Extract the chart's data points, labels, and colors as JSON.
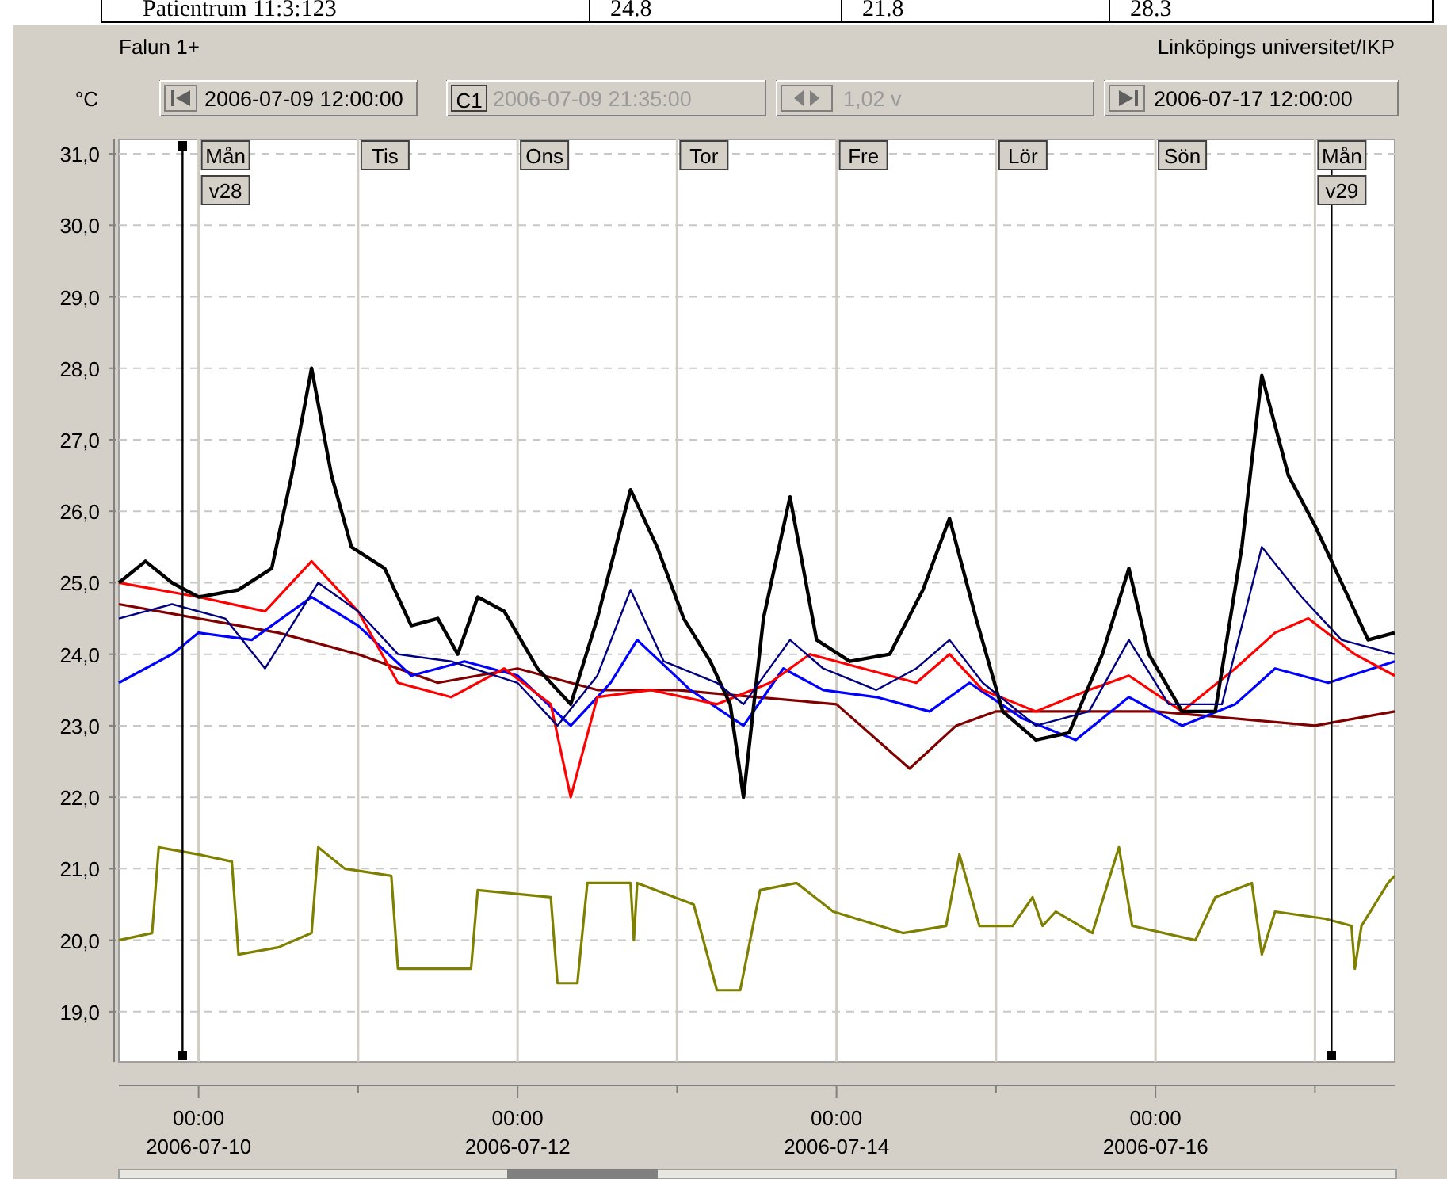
{
  "chart_data": {
    "type": "line",
    "title": "Falun 1+",
    "subtitle": "Linköpings universitet/IKP",
    "ylabel": "°C",
    "annotations": [
      "Patientrum 11:3:123",
      "24.8",
      "21.8",
      "28.3",
      "2006-07-09 12:00:00",
      "C1",
      "2006-07-09 21:35:00",
      "1,02 v",
      "2006-07-17 12:00:00",
      "Mån",
      "Tis",
      "Ons",
      "Tor",
      "Fre",
      "Lör",
      "Sön",
      "Mån",
      "v28",
      "v29"
    ],
    "xlim": [
      "2006-07-09T12:00",
      "2006-07-17T12:00"
    ],
    "xticks": [
      {
        "value": "2006-07-10",
        "label": "00:00\n2006-07-10"
      },
      {
        "value": "2006-07-11",
        "label": null
      },
      {
        "value": "2006-07-12",
        "label": "00:00\n2006-07-12"
      },
      {
        "value": "2006-07-13",
        "label": null
      },
      {
        "value": "2006-07-14",
        "label": "00:00\n2006-07-14"
      },
      {
        "value": "2006-07-15",
        "label": null
      },
      {
        "value": "2006-07-16",
        "label": "00:00\n2006-07-16"
      },
      {
        "value": "2006-07-17",
        "label": null
      }
    ],
    "ylim": [
      18.3,
      31.2
    ],
    "yticks": [
      {
        "value": 19,
        "label": "19,0"
      },
      {
        "value": 20,
        "label": "20,0"
      },
      {
        "value": 21,
        "label": "21,0"
      },
      {
        "value": 22,
        "label": "22,0"
      },
      {
        "value": 23,
        "label": "23,0"
      },
      {
        "value": 24,
        "label": "24,0"
      },
      {
        "value": 25,
        "label": "25,0"
      },
      {
        "value": 26,
        "label": "26,0"
      },
      {
        "value": 27,
        "label": "27,0"
      },
      {
        "value": 28,
        "label": "28,0"
      },
      {
        "value": 29,
        "label": "29,0"
      },
      {
        "value": 30,
        "label": "30,0"
      },
      {
        "value": 31,
        "label": "31,0"
      }
    ],
    "grid": true,
    "legend": false,
    "marker": "none",
    "line_style": "solid",
    "ref_lines": [
      {
        "axis": "x",
        "value": "2006-07-09T21:35",
        "color": "#000000"
      },
      {
        "axis": "x",
        "value": "2006-07-17T02:30",
        "color": "#000000"
      }
    ],
    "series": [
      {
        "color": "#808000",
        "x": [
          "2006-07-09T12:00",
          "2006-07-09T17:00",
          "2006-07-09T18:00",
          "2006-07-10T00:00",
          "2006-07-10T05:00",
          "2006-07-10T06:00",
          "2006-07-10T12:00",
          "2006-07-10T17:00",
          "2006-07-10T18:00",
          "2006-07-10T22:00",
          "2006-07-11T05:00",
          "2006-07-11T06:00",
          "2006-07-11T12:00",
          "2006-07-11T17:00",
          "2006-07-11T18:00",
          "2006-07-12T05:00",
          "2006-07-12T06:00",
          "2006-07-12T09:00",
          "2006-07-12T10:30",
          "2006-07-12T17:00",
          "2006-07-12T17:30",
          "2006-07-12T18:00",
          "2006-07-13T02:30",
          "2006-07-13T06:00",
          "2006-07-13T09:30",
          "2006-07-13T12:30",
          "2006-07-13T18:00",
          "2006-07-13T23:30",
          "2006-07-14T10:00",
          "2006-07-14T16:30",
          "2006-07-14T18:30",
          "2006-07-14T21:30",
          "2006-07-15T02:30",
          "2006-07-15T05:30",
          "2006-07-15T07:00",
          "2006-07-15T09:00",
          "2006-07-15T14:30",
          "2006-07-15T18:30",
          "2006-07-15T20:30",
          "2006-07-16T06:00",
          "2006-07-16T09:00",
          "2006-07-16T14:30",
          "2006-07-16T16:00",
          "2006-07-16T18:00",
          "2006-07-17T01:30",
          "2006-07-17T05:30",
          "2006-07-17T06:00",
          "2006-07-17T07:00",
          "2006-07-17T11:00",
          "2006-07-17T12:00"
        ],
        "values": [
          20.0,
          20.1,
          21.3,
          21.2,
          21.1,
          19.8,
          19.9,
          20.1,
          21.3,
          21.0,
          20.9,
          19.6,
          19.6,
          19.6,
          20.7,
          20.6,
          19.4,
          19.4,
          20.8,
          20.8,
          20.0,
          20.8,
          20.5,
          19.3,
          19.3,
          20.7,
          20.8,
          20.4,
          20.1,
          20.2,
          21.2,
          20.2,
          20.2,
          20.6,
          20.2,
          20.4,
          20.1,
          21.3,
          20.2,
          20.0,
          20.6,
          20.8,
          19.8,
          20.4,
          20.3,
          20.2,
          19.6,
          20.2,
          20.8,
          20.9
        ]
      },
      {
        "color": "#800000",
        "x": [
          "2006-07-09T12:00",
          "2006-07-10T00:00",
          "2006-07-10T12:00",
          "2006-07-11T00:00",
          "2006-07-11T12:00",
          "2006-07-12T00:00",
          "2006-07-12T12:00",
          "2006-07-13T00:00",
          "2006-07-13T12:00",
          "2006-07-14T00:00",
          "2006-07-14T11:00",
          "2006-07-14T18:00",
          "2006-07-15T00:00",
          "2006-07-15T12:00",
          "2006-07-16T00:00",
          "2006-07-16T12:00",
          "2006-07-17T00:00",
          "2006-07-17T12:00"
        ],
        "values": [
          24.7,
          24.5,
          24.3,
          24.0,
          23.6,
          23.8,
          23.5,
          23.5,
          23.4,
          23.3,
          22.4,
          23.0,
          23.2,
          23.2,
          23.2,
          23.1,
          23.0,
          23.2
        ]
      },
      {
        "color": "#0000ff",
        "x": [
          "2006-07-09T12:00",
          "2006-07-09T20:00",
          "2006-07-10T00:00",
          "2006-07-10T08:00",
          "2006-07-10T17:00",
          "2006-07-11T00:00",
          "2006-07-11T08:00",
          "2006-07-11T16:00",
          "2006-07-12T00:00",
          "2006-07-12T08:00",
          "2006-07-12T14:00",
          "2006-07-12T18:00",
          "2006-07-13T02:00",
          "2006-07-13T10:00",
          "2006-07-13T16:00",
          "2006-07-13T22:00",
          "2006-07-14T06:00",
          "2006-07-14T14:00",
          "2006-07-14T20:00",
          "2006-07-15T04:00",
          "2006-07-15T12:00",
          "2006-07-15T20:00",
          "2006-07-16T04:00",
          "2006-07-16T12:00",
          "2006-07-16T18:00",
          "2006-07-17T02:00",
          "2006-07-17T12:00"
        ],
        "values": [
          23.6,
          24.0,
          24.3,
          24.2,
          24.8,
          24.4,
          23.7,
          23.9,
          23.7,
          23.0,
          23.6,
          24.2,
          23.5,
          23.0,
          23.8,
          23.5,
          23.4,
          23.2,
          23.6,
          23.1,
          22.8,
          23.4,
          23.0,
          23.3,
          23.8,
          23.6,
          23.9
        ]
      },
      {
        "color": "#ff0000",
        "x": [
          "2006-07-09T12:00",
          "2006-07-10T00:00",
          "2006-07-10T10:00",
          "2006-07-10T17:00",
          "2006-07-11T00:00",
          "2006-07-11T06:00",
          "2006-07-11T14:00",
          "2006-07-11T22:00",
          "2006-07-12T05:00",
          "2006-07-12T08:00",
          "2006-07-12T12:00",
          "2006-07-12T20:00",
          "2006-07-13T06:00",
          "2006-07-13T14:00",
          "2006-07-13T20:00",
          "2006-07-14T04:00",
          "2006-07-14T12:00",
          "2006-07-14T17:00",
          "2006-07-14T22:00",
          "2006-07-15T06:00",
          "2006-07-15T14:00",
          "2006-07-15T20:00",
          "2006-07-16T04:00",
          "2006-07-16T12:00",
          "2006-07-16T18:00",
          "2006-07-16T23:00",
          "2006-07-17T06:00",
          "2006-07-17T12:00"
        ],
        "values": [
          25.0,
          24.8,
          24.6,
          25.3,
          24.6,
          23.6,
          23.4,
          23.8,
          23.3,
          22.0,
          23.4,
          23.5,
          23.3,
          23.6,
          24.0,
          23.8,
          23.6,
          24.0,
          23.5,
          23.2,
          23.5,
          23.7,
          23.2,
          23.8,
          24.3,
          24.5,
          24.0,
          23.7
        ]
      },
      {
        "color": "#000000",
        "x": [
          "2006-07-09T12:00",
          "2006-07-09T16:00",
          "2006-07-09T20:00",
          "2006-07-10T00:00",
          "2006-07-10T06:00",
          "2006-07-10T11:00",
          "2006-07-10T14:00",
          "2006-07-10T17:00",
          "2006-07-10T20:00",
          "2006-07-10T23:00",
          "2006-07-11T04:00",
          "2006-07-11T08:00",
          "2006-07-11T12:00",
          "2006-07-11T15:00",
          "2006-07-11T18:00",
          "2006-07-11T22:00",
          "2006-07-12T03:00",
          "2006-07-12T08:00",
          "2006-07-12T12:00",
          "2006-07-12T17:00",
          "2006-07-12T21:00",
          "2006-07-13T01:00",
          "2006-07-13T05:00",
          "2006-07-13T08:00",
          "2006-07-13T10:00",
          "2006-07-13T13:00",
          "2006-07-13T17:00",
          "2006-07-13T21:00",
          "2006-07-14T02:00",
          "2006-07-14T08:00",
          "2006-07-14T13:00",
          "2006-07-14T17:00",
          "2006-07-14T21:00",
          "2006-07-15T01:00",
          "2006-07-15T06:00",
          "2006-07-15T11:00",
          "2006-07-15T16:00",
          "2006-07-15T20:00",
          "2006-07-15T23:00",
          "2006-07-16T04:00",
          "2006-07-16T09:00",
          "2006-07-16T13:00",
          "2006-07-16T16:00",
          "2006-07-16T20:00",
          "2006-07-17T00:00",
          "2006-07-17T04:00",
          "2006-07-17T08:00",
          "2006-07-17T12:00"
        ],
        "values": [
          25.0,
          25.3,
          25.0,
          24.8,
          24.9,
          25.2,
          26.5,
          28.0,
          26.5,
          25.5,
          25.2,
          24.4,
          24.5,
          24.0,
          24.8,
          24.6,
          23.8,
          23.3,
          24.5,
          26.3,
          25.5,
          24.5,
          23.9,
          23.3,
          22.0,
          24.5,
          26.2,
          24.2,
          23.9,
          24.0,
          24.9,
          25.9,
          24.5,
          23.2,
          22.8,
          22.9,
          24.0,
          25.2,
          24.0,
          23.2,
          23.2,
          25.5,
          27.9,
          26.5,
          25.8,
          25.0,
          24.2,
          24.3
        ]
      },
      {
        "color": "#000080",
        "x": [
          "2006-07-09T12:00",
          "2006-07-09T20:00",
          "2006-07-10T04:00",
          "2006-07-10T10:00",
          "2006-07-10T14:00",
          "2006-07-10T18:00",
          "2006-07-11T00:00",
          "2006-07-11T06:00",
          "2006-07-11T14:00",
          "2006-07-12T00:00",
          "2006-07-12T06:00",
          "2006-07-12T12:00",
          "2006-07-12T17:00",
          "2006-07-12T22:00",
          "2006-07-13T06:00",
          "2006-07-13T10:00",
          "2006-07-13T17:00",
          "2006-07-13T22:00",
          "2006-07-14T06:00",
          "2006-07-14T12:00",
          "2006-07-14T17:00",
          "2006-07-14T22:00",
          "2006-07-15T06:00",
          "2006-07-15T14:00",
          "2006-07-15T20:00",
          "2006-07-16T02:00",
          "2006-07-16T10:00",
          "2006-07-16T16:00",
          "2006-07-16T22:00",
          "2006-07-17T04:00",
          "2006-07-17T12:00"
        ],
        "values": [
          24.5,
          24.7,
          24.5,
          23.8,
          24.4,
          25.0,
          24.6,
          24.0,
          23.9,
          23.6,
          23.0,
          23.7,
          24.9,
          23.9,
          23.6,
          23.3,
          24.2,
          23.8,
          23.5,
          23.8,
          24.2,
          23.6,
          23.0,
          23.2,
          24.2,
          23.3,
          23.3,
          25.5,
          24.8,
          24.2,
          24.0
        ]
      }
    ]
  }
}
